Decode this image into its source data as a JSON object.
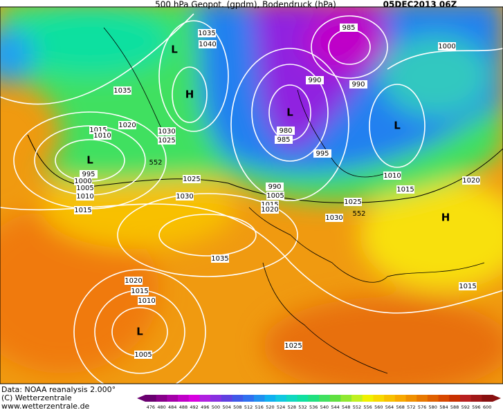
{
  "header": {
    "title": "500 hPa Geopot. (gpdm), Bodendruck (hPa)",
    "date": "05DEC2013 06Z"
  },
  "footer": {
    "source": "Data: NOAA reanalysis 2.000°",
    "copyright": "(C) Wetterzentrale",
    "url": "www.wetterzentrale.de"
  },
  "map": {
    "pressure_labels": [
      "1035",
      "1040",
      "1035",
      "1020",
      "1015",
      "1010",
      "1030",
      "1025",
      "995",
      "1000",
      "1005",
      "1010",
      "1015",
      "1025",
      "1030",
      "1035",
      "1020",
      "1015",
      "1010",
      "1005",
      "1025",
      "985",
      "990",
      "990",
      "980",
      "985",
      "995",
      "990",
      "1005",
      "1015",
      "1020",
      "1025",
      "1030",
      "1010",
      "1015",
      "1020",
      "1015",
      "1000"
    ],
    "geopotential_labels": [
      "552",
      "552"
    ],
    "pressure_centers": [
      "L",
      "H",
      "L",
      "L",
      "L",
      "L",
      "H"
    ]
  },
  "colorbar": {
    "labels": [
      "476",
      "480",
      "484",
      "488",
      "492",
      "496",
      "500",
      "504",
      "508",
      "512",
      "516",
      "520",
      "524",
      "528",
      "532",
      "536",
      "540",
      "544",
      "548",
      "552",
      "556",
      "560",
      "564",
      "568",
      "572",
      "576",
      "580",
      "584",
      "588",
      "592",
      "596",
      "600"
    ],
    "colors": [
      "#6a0070",
      "#88008a",
      "#a400a8",
      "#c000c8",
      "#d800e0",
      "#b020e0",
      "#8830e0",
      "#6040e0",
      "#4058e8",
      "#3070f0",
      "#2090f0",
      "#10b0f0",
      "#10c8e0",
      "#10d8c0",
      "#10e0a0",
      "#20e080",
      "#40e060",
      "#60e040",
      "#90e830",
      "#c0f020",
      "#f0f000",
      "#f8d800",
      "#f8c000",
      "#f8a800",
      "#f09000",
      "#e87800",
      "#e06000",
      "#d84800",
      "#c83000",
      "#b82020",
      "#a01818",
      "#881010"
    ]
  }
}
